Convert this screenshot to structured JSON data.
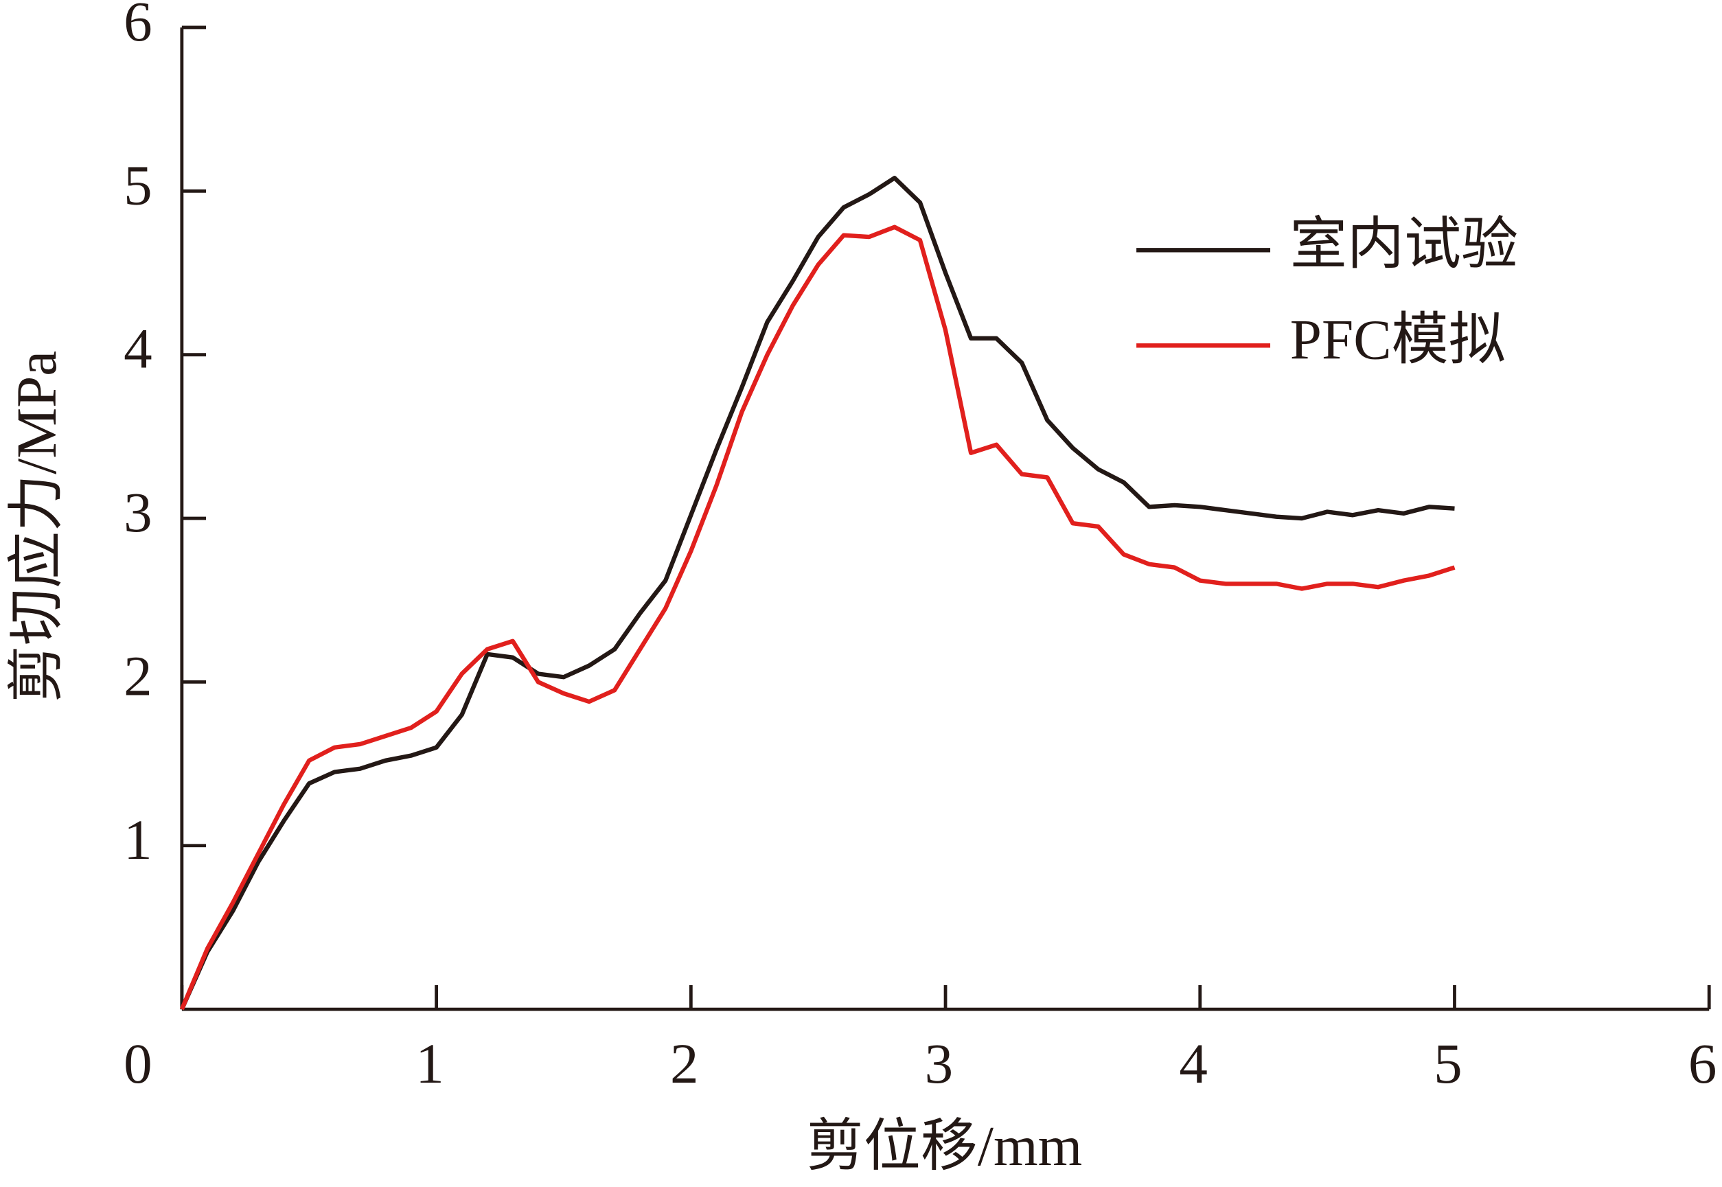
{
  "chart_data": {
    "type": "line",
    "x_label": "剪位移/mm",
    "y_label": "剪切应力/MPa",
    "x": [
      0,
      0.1,
      0.2,
      0.3,
      0.4,
      0.5,
      0.6,
      0.7,
      0.8,
      0.9,
      1.0,
      1.1,
      1.2,
      1.3,
      1.4,
      1.5,
      1.6,
      1.7,
      1.8,
      1.9,
      2.0,
      2.1,
      2.2,
      2.3,
      2.4,
      2.5,
      2.6,
      2.7,
      2.8,
      2.9,
      3.0,
      3.1,
      3.2,
      3.3,
      3.4,
      3.5,
      3.6,
      3.7,
      3.8,
      3.9,
      4.0,
      4.1,
      4.2,
      4.3,
      4.4,
      4.5,
      4.6,
      4.7,
      4.8,
      4.9,
      5.0
    ],
    "series": [
      {
        "name": "室内试验",
        "color": "#231815",
        "values": [
          0,
          0.35,
          0.6,
          0.9,
          1.15,
          1.38,
          1.45,
          1.47,
          1.52,
          1.55,
          1.6,
          1.8,
          2.17,
          2.15,
          2.05,
          2.03,
          2.1,
          2.2,
          2.42,
          2.62,
          3.02,
          3.42,
          3.8,
          4.2,
          4.45,
          4.72,
          4.9,
          4.98,
          5.08,
          4.93,
          4.5,
          4.1,
          4.1,
          3.95,
          3.6,
          3.43,
          3.3,
          3.22,
          3.07,
          3.08,
          3.07,
          3.05,
          3.03,
          3.01,
          3.0,
          3.04,
          3.02,
          3.05,
          3.03,
          3.07,
          3.06
        ]
      },
      {
        "name": "PFC模拟",
        "color": "#e1201d",
        "values": [
          0,
          0.37,
          0.65,
          0.95,
          1.25,
          1.52,
          1.6,
          1.62,
          1.67,
          1.72,
          1.82,
          2.05,
          2.2,
          2.25,
          2.0,
          1.93,
          1.88,
          1.95,
          2.2,
          2.45,
          2.8,
          3.2,
          3.65,
          4.0,
          4.3,
          4.55,
          4.73,
          4.72,
          4.78,
          4.7,
          4.15,
          3.4,
          3.45,
          3.27,
          3.25,
          2.97,
          2.95,
          2.78,
          2.72,
          2.7,
          2.62,
          2.6,
          2.6,
          2.6,
          2.57,
          2.6,
          2.6,
          2.58,
          2.62,
          2.65,
          2.7
        ]
      }
    ],
    "xlim": [
      0,
      6
    ],
    "xticks": [
      0,
      1,
      2,
      3,
      4,
      5,
      6
    ],
    "ylim": [
      0,
      6
    ],
    "yticks": [
      1,
      2,
      3,
      4,
      5,
      6
    ],
    "legend": "upper-right"
  }
}
